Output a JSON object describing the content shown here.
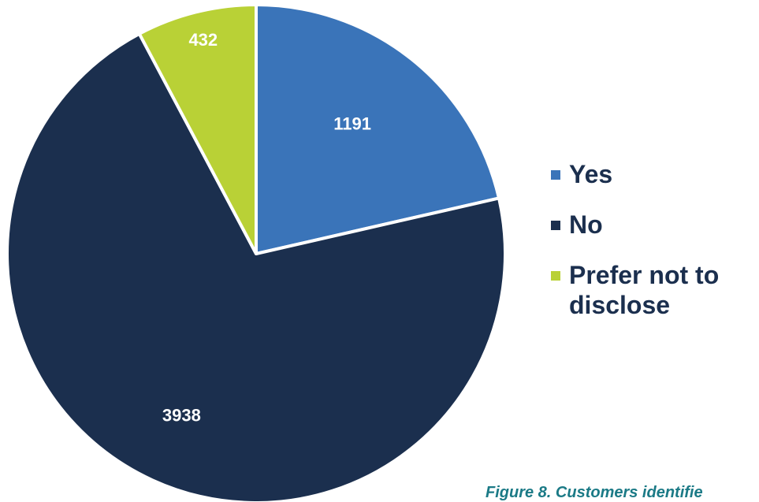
{
  "chart_data": {
    "type": "pie",
    "categories": [
      "Yes",
      "No",
      "Prefer not to disclose"
    ],
    "values": [
      1191,
      3938,
      432
    ],
    "data_labels": [
      "1191",
      "3938",
      "432"
    ],
    "colors": [
      "#3a74b9",
      "#1b2f4e",
      "#b9d136"
    ],
    "legend_placement": "right",
    "start": "12 o'clock, clockwise"
  },
  "legend": {
    "items": [
      {
        "label": "Yes",
        "color": "#3a74b9"
      },
      {
        "label": "No",
        "color": "#1b2f4e"
      },
      {
        "label_line1": "Prefer not to",
        "label_line2": "disclose",
        "color": "#b9d136"
      }
    ]
  },
  "caption": "Figure 8. Customers identifie"
}
